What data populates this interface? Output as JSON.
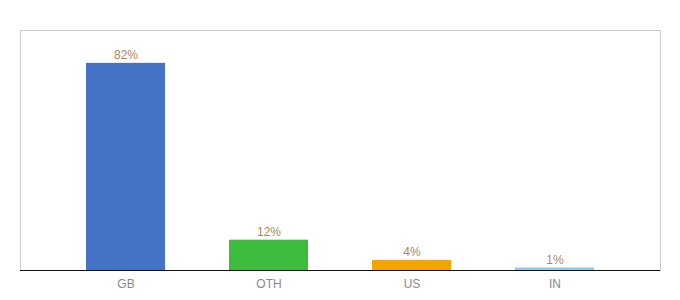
{
  "chart_data": {
    "type": "bar",
    "categories": [
      "GB",
      "OTH",
      "US",
      "IN"
    ],
    "values": [
      82,
      12,
      4,
      1
    ],
    "value_labels": [
      "82%",
      "12%",
      "4%",
      "1%"
    ],
    "colors": [
      "#4472c4",
      "#3dbb3d",
      "#f5a500",
      "#87ceeb"
    ],
    "ylim": [
      0,
      95
    ],
    "data_labels": true,
    "grid": false,
    "tick_labels": "x"
  }
}
